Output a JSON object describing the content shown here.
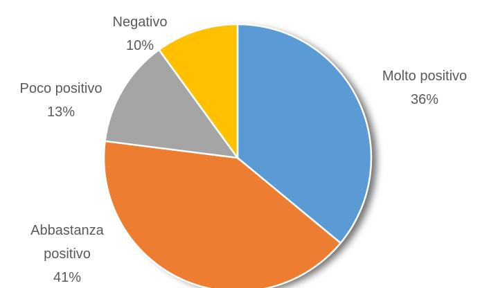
{
  "chart_data": {
    "type": "pie",
    "categories": [
      "Molto positivo",
      "Abbastanza positivo",
      "Poco positivo",
      "Negativo"
    ],
    "values": [
      36,
      41,
      13,
      10
    ],
    "value_labels": [
      "36%",
      "41%",
      "13%",
      "10%"
    ],
    "colors": [
      "#5b9bd5",
      "#ed7d31",
      "#a5a5a5",
      "#ffc000"
    ]
  }
}
